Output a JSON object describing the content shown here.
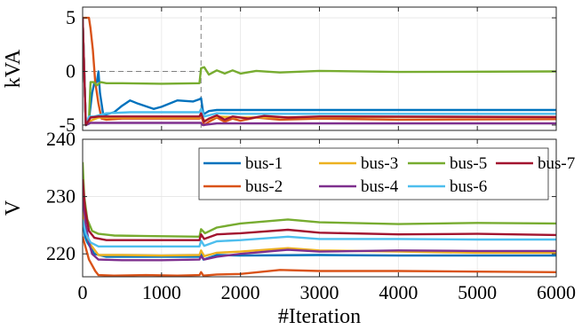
{
  "chart_data": [
    {
      "type": "line",
      "ylabel": "kVA",
      "xlabel": "",
      "xlim": [
        0,
        6000
      ],
      "ylim": [
        -5.5,
        6
      ],
      "yticks": [
        -5,
        0,
        5
      ],
      "ytick_labels": [
        "-5",
        "0",
        "5"
      ],
      "grid": true,
      "reference_lines": [
        {
          "orientation": "horizontal",
          "value": 0,
          "style": "dashed",
          "from_x": 0,
          "to_x": 1500
        },
        {
          "orientation": "vertical",
          "value": 1500,
          "style": "dashed"
        }
      ],
      "series": [
        {
          "key": "bus1",
          "points": [
            [
              0,
              5
            ],
            [
              40,
              -5
            ],
            [
              80,
              -4.5
            ],
            [
              120,
              -2
            ],
            [
              150,
              -1
            ],
            [
              180,
              -1
            ],
            [
              200,
              0
            ],
            [
              220,
              -2
            ],
            [
              260,
              -4
            ],
            [
              300,
              -4
            ],
            [
              400,
              -3.8
            ],
            [
              500,
              -3.2
            ],
            [
              600,
              -2.7
            ],
            [
              700,
              -3.0
            ],
            [
              900,
              -3.5
            ],
            [
              1000,
              -3.3
            ],
            [
              1200,
              -2.7
            ],
            [
              1400,
              -2.8
            ],
            [
              1480,
              -2.6
            ],
            [
              1500,
              -2.5
            ],
            [
              1530,
              -4.0
            ],
            [
              1600,
              -3.7
            ],
            [
              1700,
              -3.6
            ],
            [
              2000,
              -3.6
            ],
            [
              3000,
              -3.6
            ],
            [
              6000,
              -3.6
            ]
          ]
        },
        {
          "key": "bus2",
          "points": [
            [
              0,
              5
            ],
            [
              50,
              5
            ],
            [
              80,
              5
            ],
            [
              100,
              4
            ],
            [
              130,
              2
            ],
            [
              160,
              -1
            ],
            [
              200,
              -3
            ],
            [
              240,
              -4.4
            ],
            [
              300,
              -4.5
            ],
            [
              500,
              -4.4
            ],
            [
              1000,
              -4.4
            ],
            [
              1480,
              -4.4
            ],
            [
              1500,
              -4.1
            ],
            [
              1540,
              -5.0
            ],
            [
              1600,
              -4.7
            ],
            [
              1700,
              -4.3
            ],
            [
              1800,
              -4.7
            ],
            [
              1900,
              -4.4
            ],
            [
              2000,
              -4.6
            ],
            [
              2200,
              -4.3
            ],
            [
              2500,
              -4.5
            ],
            [
              3000,
              -4.4
            ],
            [
              4000,
              -4.5
            ],
            [
              6000,
              -4.45
            ]
          ]
        },
        {
          "key": "bus3",
          "points": [
            [
              0,
              5
            ],
            [
              40,
              -5
            ],
            [
              100,
              -4.6
            ],
            [
              200,
              -4.3
            ],
            [
              500,
              -4.3
            ],
            [
              1480,
              -4.3
            ],
            [
              1500,
              -4.0
            ],
            [
              1540,
              -4.6
            ],
            [
              1700,
              -4.2
            ],
            [
              2000,
              -4.3
            ],
            [
              3000,
              -4.25
            ],
            [
              6000,
              -4.25
            ]
          ]
        },
        {
          "key": "bus4",
          "points": [
            [
              0,
              5
            ],
            [
              40,
              -5
            ],
            [
              100,
              -4.8
            ],
            [
              500,
              -4.8
            ],
            [
              1500,
              -4.8
            ],
            [
              1520,
              -5.0
            ],
            [
              1700,
              -4.85
            ],
            [
              6000,
              -4.85
            ]
          ]
        },
        {
          "key": "bus5",
          "points": [
            [
              0,
              5
            ],
            [
              40,
              -5
            ],
            [
              80,
              -4.5
            ],
            [
              100,
              -1
            ],
            [
              140,
              -1
            ],
            [
              180,
              -1.3
            ],
            [
              230,
              -1.0
            ],
            [
              300,
              -1.1
            ],
            [
              500,
              -1.1
            ],
            [
              1000,
              -1.15
            ],
            [
              1480,
              -1.1
            ],
            [
              1500,
              0.3
            ],
            [
              1540,
              0.4
            ],
            [
              1600,
              -0.3
            ],
            [
              1700,
              0.1
            ],
            [
              1800,
              -0.2
            ],
            [
              1900,
              0.1
            ],
            [
              2000,
              -0.2
            ],
            [
              2200,
              0.05
            ],
            [
              2500,
              -0.1
            ],
            [
              3000,
              0.05
            ],
            [
              4000,
              -0.05
            ],
            [
              6000,
              0
            ]
          ]
        },
        {
          "key": "bus6",
          "points": [
            [
              0,
              5
            ],
            [
              40,
              -5
            ],
            [
              80,
              -4.2
            ],
            [
              150,
              -4.2
            ],
            [
              300,
              -3.9
            ],
            [
              600,
              -3.8
            ],
            [
              1000,
              -3.8
            ],
            [
              1480,
              -3.8
            ],
            [
              1500,
              -3.5
            ],
            [
              1540,
              -4.2
            ],
            [
              1700,
              -3.9
            ],
            [
              2000,
              -3.95
            ],
            [
              6000,
              -3.95
            ]
          ]
        },
        {
          "key": "bus7",
          "points": [
            [
              0,
              5
            ],
            [
              40,
              -5
            ],
            [
              100,
              -4.3
            ],
            [
              200,
              -4.2
            ],
            [
              500,
              -4.2
            ],
            [
              1480,
              -4.2
            ],
            [
              1500,
              -3.9
            ],
            [
              1540,
              -4.7
            ],
            [
              1600,
              -4.4
            ],
            [
              1700,
              -4.1
            ],
            [
              1800,
              -4.5
            ],
            [
              1900,
              -4.2
            ],
            [
              2100,
              -4.4
            ],
            [
              2300,
              -4.15
            ],
            [
              2600,
              -4.3
            ],
            [
              3000,
              -4.2
            ],
            [
              6000,
              -4.25
            ]
          ]
        }
      ]
    },
    {
      "type": "line",
      "ylabel": "V",
      "xlabel": "#Iteration",
      "xlim": [
        0,
        6000
      ],
      "ylim": [
        216,
        240
      ],
      "xticks": [
        0,
        1000,
        2000,
        3000,
        4000,
        5000,
        6000
      ],
      "xtick_labels": [
        "0",
        "1000",
        "2000",
        "3000",
        "4000",
        "5000",
        "6000"
      ],
      "yticks": [
        220,
        230,
        240
      ],
      "ytick_labels": [
        "220",
        "230",
        "240"
      ],
      "grid": true,
      "legend": "top-right",
      "series": [
        {
          "name": "bus-1",
          "key": "bus1",
          "points": [
            [
              0,
              226
            ],
            [
              30,
              223
            ],
            [
              60,
              222
            ],
            [
              150,
              220
            ],
            [
              300,
              219.5
            ],
            [
              600,
              219.5
            ],
            [
              1000,
              219.5
            ],
            [
              1480,
              219.5
            ],
            [
              1500,
              220
            ],
            [
              1530,
              219
            ],
            [
              1700,
              219.8
            ],
            [
              2000,
              219.7
            ],
            [
              3000,
              219.8
            ],
            [
              4000,
              219.7
            ],
            [
              6000,
              219.7
            ]
          ]
        },
        {
          "name": "bus-2",
          "key": "bus2",
          "points": [
            [
              0,
              223
            ],
            [
              40,
              221
            ],
            [
              80,
              219
            ],
            [
              120,
              218
            ],
            [
              160,
              217
            ],
            [
              200,
              216.3
            ],
            [
              400,
              216.2
            ],
            [
              800,
              216.3
            ],
            [
              1200,
              216.2
            ],
            [
              1480,
              216.3
            ],
            [
              1500,
              216.8
            ],
            [
              1530,
              216.2
            ],
            [
              1700,
              216.4
            ],
            [
              2000,
              216.5
            ],
            [
              2500,
              217.2
            ],
            [
              3000,
              217.0
            ],
            [
              4000,
              217.0
            ],
            [
              5000,
              216.9
            ],
            [
              6000,
              216.8
            ]
          ]
        },
        {
          "name": "bus-3",
          "key": "bus3",
          "points": [
            [
              0,
              228
            ],
            [
              40,
              224
            ],
            [
              80,
              222
            ],
            [
              200,
              219.8
            ],
            [
              500,
              219.8
            ],
            [
              1000,
              219.7
            ],
            [
              1480,
              219.8
            ],
            [
              1500,
              220.6
            ],
            [
              1540,
              219.6
            ],
            [
              1700,
              220.2
            ],
            [
              2000,
              220.4
            ],
            [
              2600,
              221.0
            ],
            [
              3000,
              220.6
            ],
            [
              4000,
              220.4
            ],
            [
              5000,
              220.2
            ],
            [
              6000,
              220.2
            ]
          ]
        },
        {
          "name": "bus-4",
          "key": "bus4",
          "points": [
            [
              0,
              230
            ],
            [
              40,
              225
            ],
            [
              80,
              222
            ],
            [
              120,
              220
            ],
            [
              200,
              219
            ],
            [
              500,
              218.9
            ],
            [
              1000,
              218.9
            ],
            [
              1480,
              219.0
            ],
            [
              1500,
              219.6
            ],
            [
              1540,
              219.0
            ],
            [
              1700,
              219.5
            ],
            [
              2000,
              220.0
            ],
            [
              2600,
              220.7
            ],
            [
              3000,
              220.4
            ],
            [
              4000,
              220.6
            ],
            [
              5000,
              220.5
            ],
            [
              6000,
              220.5
            ]
          ]
        },
        {
          "name": "bus-5",
          "key": "bus5",
          "points": [
            [
              0,
              236
            ],
            [
              20,
              230
            ],
            [
              60,
              226
            ],
            [
              120,
              224
            ],
            [
              200,
              223.5
            ],
            [
              400,
              223.2
            ],
            [
              800,
              223.1
            ],
            [
              1480,
              223.0
            ],
            [
              1500,
              224.3
            ],
            [
              1550,
              223.6
            ],
            [
              1700,
              224.6
            ],
            [
              2000,
              225.3
            ],
            [
              2600,
              226.0
            ],
            [
              3000,
              225.5
            ],
            [
              4000,
              225.2
            ],
            [
              5000,
              225.4
            ],
            [
              6000,
              225.3
            ]
          ]
        },
        {
          "name": "bus-6",
          "key": "bus6",
          "points": [
            [
              0,
              226
            ],
            [
              40,
              223.5
            ],
            [
              100,
              222
            ],
            [
              200,
              221.3
            ],
            [
              500,
              221.3
            ],
            [
              1000,
              221.3
            ],
            [
              1480,
              221.3
            ],
            [
              1500,
              222.3
            ],
            [
              1540,
              221.4
            ],
            [
              1700,
              222.2
            ],
            [
              2000,
              222.4
            ],
            [
              2600,
              223.0
            ],
            [
              3000,
              222.6
            ],
            [
              4000,
              222.6
            ],
            [
              5000,
              222.5
            ],
            [
              6000,
              222.5
            ]
          ]
        },
        {
          "name": "bus-7",
          "key": "bus7",
          "points": [
            [
              0,
              233
            ],
            [
              30,
              228
            ],
            [
              80,
              224
            ],
            [
              150,
              222.8
            ],
            [
              300,
              222.4
            ],
            [
              800,
              222.4
            ],
            [
              1480,
              222.4
            ],
            [
              1500,
              223.4
            ],
            [
              1540,
              222.6
            ],
            [
              1700,
              223.4
            ],
            [
              2000,
              223.6
            ],
            [
              2600,
              224.2
            ],
            [
              3000,
              223.7
            ],
            [
              4000,
              223.4
            ],
            [
              5000,
              223.5
            ],
            [
              6000,
              223.3
            ]
          ]
        }
      ]
    }
  ],
  "colors": {
    "bus1": "#0072BD",
    "bus2": "#D95319",
    "bus3": "#EDB120",
    "bus4": "#7E2F8E",
    "bus5": "#77AC30",
    "bus6": "#4DBEEE",
    "bus7": "#A2142F",
    "grid": "#e6e6e6",
    "axis": "#262626",
    "refline": "#808080"
  }
}
